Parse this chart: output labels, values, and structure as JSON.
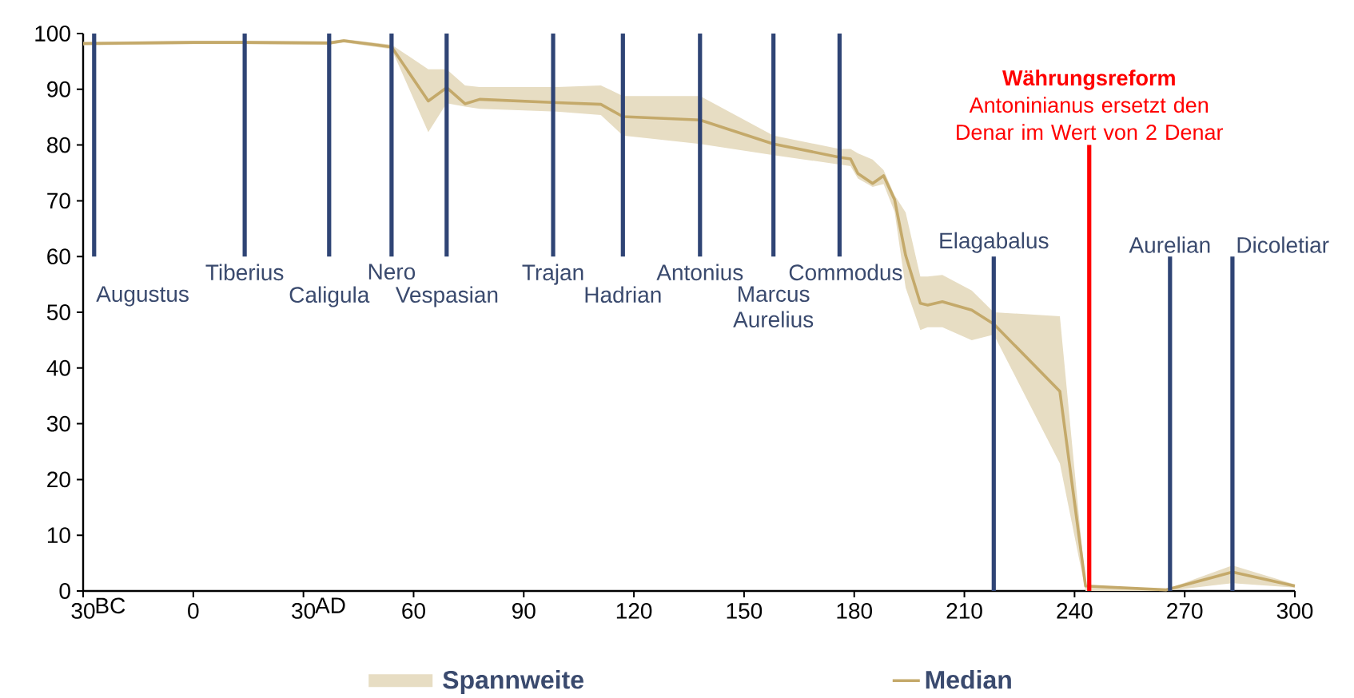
{
  "chart_data": {
    "type": "line",
    "xlim": [
      -30,
      300
    ],
    "ylim": [
      0,
      100
    ],
    "xticks": [
      {
        "value": -30,
        "label": "30"
      },
      0,
      30,
      60,
      90,
      120,
      150,
      180,
      210,
      240,
      270,
      300
    ],
    "yticks": [
      0,
      10,
      20,
      30,
      40,
      50,
      60,
      70,
      80,
      90,
      100
    ],
    "legend": "bottom",
    "series": [
      {
        "name": "Median",
        "color": "#c4a96a",
        "x": [
          -30,
          0,
          14,
          37,
          41,
          54,
          64,
          69,
          74,
          78,
          99,
          111,
          117,
          138,
          158,
          176,
          179,
          181,
          185,
          188,
          191,
          194,
          198,
          200,
          204,
          212,
          218,
          236,
          243,
          265,
          283,
          300
        ],
        "values": [
          98.2,
          98.4,
          98.4,
          98.3,
          98.7,
          97.6,
          87.9,
          90.3,
          87.4,
          88.2,
          87.6,
          87.3,
          85.1,
          84.5,
          80.2,
          77.8,
          77.5,
          74.9,
          73.1,
          74.5,
          70.2,
          60.2,
          51.6,
          51.3,
          51.9,
          50.4,
          47.9,
          35.8,
          0.9,
          0.2,
          3.4,
          0.9
        ],
        "lower": [
          97.9,
          98.1,
          98.1,
          98.0,
          98.4,
          97.2,
          82.3,
          87.5,
          86.9,
          86.5,
          86.0,
          85.4,
          81.7,
          80.2,
          78.2,
          76.5,
          76.2,
          74.0,
          72.5,
          73.0,
          68.0,
          54.4,
          46.8,
          47.3,
          47.3,
          45.0,
          46.0,
          22.9,
          0,
          0,
          1.4,
          0.6
        ],
        "upper": [
          98.5,
          98.7,
          98.7,
          98.6,
          99.0,
          98.0,
          93.6,
          93.6,
          90.7,
          90.4,
          90.4,
          90.7,
          88.8,
          88.8,
          81.7,
          79.3,
          79.3,
          78.5,
          77.4,
          75.5,
          71.0,
          67.9,
          56.4,
          56.4,
          56.7,
          53.9,
          50.0,
          49.3,
          1.0,
          0.3,
          4.6,
          1.2
        ]
      }
    ],
    "ref_lines": [
      {
        "axis": "x",
        "value": -27,
        "label": "Augustus",
        "color": "#2f4475"
      },
      {
        "axis": "x",
        "value": 14,
        "label": "Tiberius",
        "color": "#2f4475"
      },
      {
        "axis": "x",
        "value": 37,
        "label": "Caligula",
        "color": "#2f4475"
      },
      {
        "axis": "x",
        "value": 54,
        "label": "Nero",
        "color": "#2f4475"
      },
      {
        "axis": "x",
        "value": 69,
        "label": "Vespasian",
        "color": "#2f4475"
      },
      {
        "axis": "x",
        "value": 98,
        "label": "Trajan",
        "color": "#2f4475"
      },
      {
        "axis": "x",
        "value": 117,
        "label": "Hadrian",
        "color": "#2f4475"
      },
      {
        "axis": "x",
        "value": 138,
        "label": "Antonius",
        "color": "#2f4475"
      },
      {
        "axis": "x",
        "value": 158,
        "label": "Marcus Aurelius",
        "color": "#2f4475"
      },
      {
        "axis": "x",
        "value": 176,
        "label": "Commodus",
        "color": "#2f4475"
      },
      {
        "axis": "x",
        "value": 244,
        "label": "Währungsreform",
        "color": "#ff0000"
      },
      {
        "axis": "x",
        "value": 218,
        "label": "Elagabalus",
        "color": "#2f4475"
      },
      {
        "axis": "x",
        "value": 266,
        "label": "Aurelian",
        "color": "#2f4475"
      },
      {
        "axis": "x",
        "value": 283,
        "label": "Dicoletiar",
        "color": "#2f4475"
      }
    ],
    "annotations": [
      "BC",
      "AD",
      "Antoninianus ersetzt den Denar im Wert von 2 Denar",
      "Spannweite"
    ]
  }
}
